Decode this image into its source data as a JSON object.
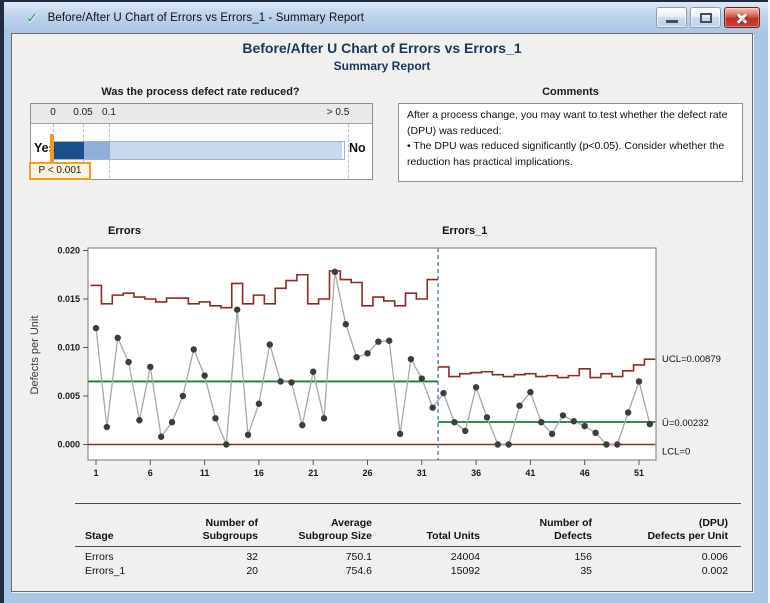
{
  "window": {
    "title": "Before/After U Chart of Errors vs Errors_1 - Summary Report"
  },
  "report": {
    "title": "Before/After U Chart of Errors vs Errors_1",
    "subtitle": "Summary Report"
  },
  "gauge": {
    "question": "Was the process defect rate reduced?",
    "yes_label": "Yes",
    "no_label": "No",
    "p_value_label": "P < 0.001",
    "ticks": [
      "0",
      "0.05",
      "0.1",
      "> 0.5"
    ],
    "colors": {
      "significant": "#1a4f8e",
      "marginal": "#8fafd9",
      "not_significant": "#c7d8ec",
      "marker": "#f09a1f"
    }
  },
  "comments": {
    "title": "Comments",
    "lines": [
      "After a process change, you may want to test whether the defect rate (DPU) was reduced:",
      "• The DPU was reduced significantly (p<0.05). Consider whether the reduction has practical implications."
    ]
  },
  "chart_data": {
    "type": "line",
    "subtype": "u-control-chart-before-after",
    "ylabel": "Defects per Unit",
    "ylim": [
      0,
      0.02
    ],
    "yticks": [
      "0.000",
      "0.005",
      "0.010",
      "0.015",
      "0.020"
    ],
    "xticks": [
      1,
      6,
      11,
      16,
      21,
      26,
      31,
      36,
      41,
      46,
      51
    ],
    "separator_after": 32,
    "annotations": {
      "ucl": "UCL=0.00879",
      "center": "Ū=0.00232",
      "lcl": "LCL=0"
    },
    "colors": {
      "limit": "#8e2b21",
      "center": "#1e7b35",
      "point": "#3d3d3d",
      "connector": "#a8a8a8",
      "separator": "#3d79b8"
    },
    "stages": [
      {
        "label": "Errors",
        "start": 1,
        "center": 0.0065,
        "lcl": 0,
        "values": [
          0.012,
          0.0018,
          0.011,
          0.0085,
          0.0025,
          0.008,
          0.0008,
          0.0023,
          0.005,
          0.0098,
          0.0071,
          0.0027,
          0.0,
          0.0139,
          0.001,
          0.0042,
          0.0103,
          0.0065,
          0.0064,
          0.002,
          0.0075,
          0.0027,
          0.0178,
          0.0124,
          0.009,
          0.0094,
          0.0106,
          0.0107,
          0.0011,
          0.0088,
          0.0068,
          0.0038
        ],
        "ucl": [
          0.0164,
          0.0145,
          0.0154,
          0.0156,
          0.0152,
          0.015,
          0.0147,
          0.0151,
          0.0151,
          0.0145,
          0.0147,
          0.0143,
          0.0141,
          0.0166,
          0.0145,
          0.0154,
          0.0145,
          0.0161,
          0.0169,
          0.0175,
          0.0145,
          0.015,
          0.0179,
          0.017,
          0.0167,
          0.0143,
          0.0152,
          0.0148,
          0.0143,
          0.0156,
          0.015,
          0.017
        ]
      },
      {
        "label": "Errors_1",
        "start": 33,
        "center": 0.00232,
        "lcl": 0,
        "values": [
          0.0053,
          0.0023,
          0.0014,
          0.0059,
          0.0028,
          0.0,
          0.0,
          0.004,
          0.0054,
          0.0023,
          0.0011,
          0.003,
          0.0024,
          0.0019,
          0.0012,
          0.0,
          0.0,
          0.0033,
          0.0065,
          0.0021
        ],
        "ucl": [
          0.008,
          0.007,
          0.0073,
          0.0074,
          0.0075,
          0.0072,
          0.007,
          0.0072,
          0.0073,
          0.007,
          0.0071,
          0.0069,
          0.0071,
          0.0078,
          0.0069,
          0.0073,
          0.007,
          0.0076,
          0.0082,
          0.0088
        ]
      }
    ]
  },
  "table": {
    "columns": [
      [
        "Stage"
      ],
      [
        "Number of",
        "Subgroups"
      ],
      [
        "Average",
        "Subgroup Size"
      ],
      [
        "Total Units"
      ],
      [
        "Number of",
        "Defects"
      ],
      [
        "(DPU)",
        "Defects per Unit"
      ]
    ],
    "rows": [
      [
        "Errors",
        "32",
        "750.1",
        "24004",
        "156",
        "0.006"
      ],
      [
        "Errors_1",
        "20",
        "754.6",
        "15092",
        "35",
        "0.002"
      ]
    ]
  }
}
